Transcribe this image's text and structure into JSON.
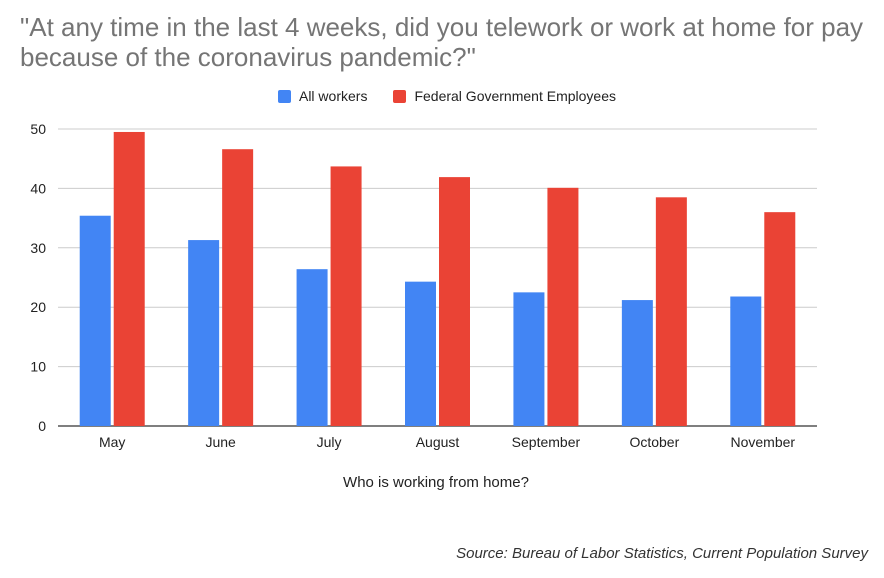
{
  "chart_data": {
    "type": "bar",
    "title": "\"At any time in the last 4 weeks, did you telework or work at home for pay because of the coronavirus pandemic?\"",
    "xlabel": "Who is working from home?",
    "ylabel": "",
    "categories": [
      "May",
      "June",
      "July",
      "August",
      "September",
      "October",
      "November"
    ],
    "series": [
      {
        "name": "All workers",
        "color": "#4285f4",
        "values": [
          35.4,
          31.3,
          26.4,
          24.3,
          22.5,
          21.2,
          21.8
        ]
      },
      {
        "name": "Federal Government Employees",
        "color": "#ea4335",
        "values": [
          49.5,
          46.6,
          43.7,
          41.9,
          40.1,
          38.5,
          36.0
        ]
      }
    ],
    "ylim": [
      0,
      50
    ],
    "yticks": [
      "0",
      "10",
      "20",
      "30",
      "40",
      "50"
    ],
    "grid": true,
    "legend_position": "top-center",
    "source": "Source: Bureau of Labor Statistics, Current Population Survey"
  }
}
